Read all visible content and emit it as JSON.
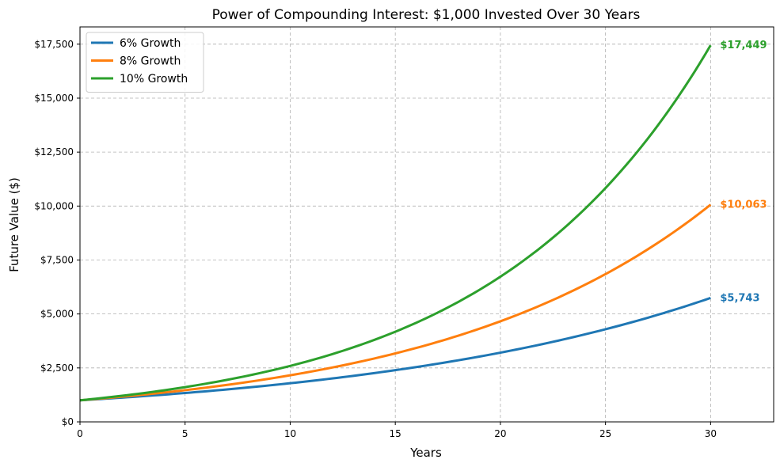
{
  "chart_data": {
    "type": "line",
    "title": "Power of Compounding Interest: $1,000 Invested Over 30 Years",
    "xlabel": "Years",
    "ylabel": "Future Value ($)",
    "xlim": [
      0,
      33
    ],
    "ylim": [
      0,
      18300
    ],
    "xticks": [
      0,
      5,
      10,
      15,
      20,
      25,
      30
    ],
    "yticks": [
      0,
      2500,
      5000,
      7500,
      10000,
      12500,
      15000,
      17500
    ],
    "ytick_labels": [
      "$0",
      "$2,500",
      "$5,000",
      "$7,500",
      "$10,000",
      "$12,500",
      "$15,000",
      "$17,500"
    ],
    "grid": true,
    "legend_position": "top-left",
    "principal": 1000,
    "years": 30,
    "series": [
      {
        "name": "6% Growth",
        "rate": 0.06,
        "color": "#1f77b4",
        "end_value": 5743,
        "end_label": "$5,743"
      },
      {
        "name": "8% Growth",
        "rate": 0.08,
        "color": "#ff7f0e",
        "end_value": 10063,
        "end_label": "$10,063"
      },
      {
        "name": "10% Growth",
        "rate": 0.1,
        "color": "#2ca02c",
        "end_value": 17449,
        "end_label": "$17,449"
      }
    ]
  }
}
